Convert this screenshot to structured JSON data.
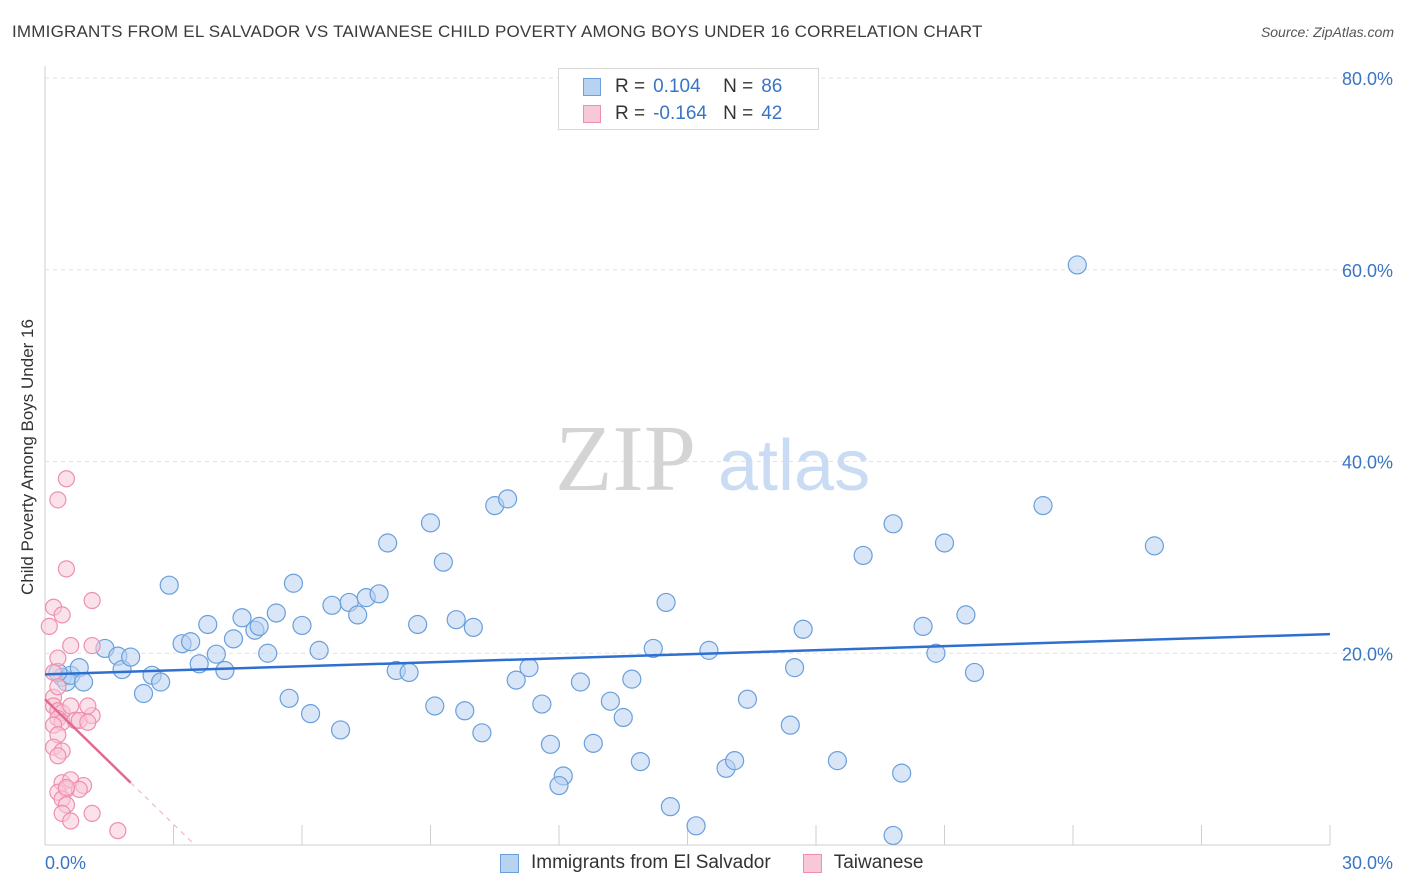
{
  "header": {
    "title": "IMMIGRANTS FROM EL SALVADOR VS TAIWANESE CHILD POVERTY AMONG BOYS UNDER 16 CORRELATION CHART",
    "source": "Source: ZipAtlas.com"
  },
  "watermark": {
    "zip": "ZIP",
    "atlas": "atlas"
  },
  "legend": {
    "series": [
      {
        "r_label": "R =",
        "r_value": "0.104",
        "n_label": "N =",
        "n_value": "86"
      },
      {
        "r_label": "R =",
        "r_value": "-0.164",
        "n_label": "N =",
        "n_value": "42"
      }
    ]
  },
  "chart_data": {
    "type": "scatter",
    "title": "IMMIGRANTS FROM EL SALVADOR VS TAIWANESE CHILD POVERTY AMONG BOYS UNDER 16 CORRELATION CHART",
    "xlabel": "",
    "ylabel": "Child Poverty Among Boys Under 16",
    "xlim": [
      0,
      30
    ],
    "ylim": [
      0,
      80
    ],
    "x_tick_labels": [
      "0.0%",
      "30.0%"
    ],
    "y_ticks": [
      20,
      40,
      60,
      80
    ],
    "y_tick_labels": [
      "20.0%",
      "40.0%",
      "60.0%",
      "80.0%"
    ],
    "grid": true,
    "legend_position": "top-center",
    "series": [
      {
        "name": "Immigrants from El Salvador",
        "color": "#8ab4e8",
        "edge_color": "#6a9fdc",
        "trend": {
          "x": [
            0.0,
            30.0
          ],
          "y": [
            17.8,
            22.0
          ],
          "color": "#2f6fd0"
        },
        "points": [
          [
            0.4,
            17.5
          ],
          [
            0.5,
            17.0
          ],
          [
            0.6,
            17.7
          ],
          [
            0.8,
            18.5
          ],
          [
            0.9,
            17.0
          ],
          [
            1.4,
            20.5
          ],
          [
            1.7,
            19.7
          ],
          [
            1.8,
            18.3
          ],
          [
            2.0,
            19.6
          ],
          [
            2.3,
            15.8
          ],
          [
            2.5,
            17.7
          ],
          [
            2.7,
            17.0
          ],
          [
            2.9,
            27.1
          ],
          [
            3.2,
            21.0
          ],
          [
            3.4,
            21.2
          ],
          [
            3.6,
            18.9
          ],
          [
            3.8,
            23.0
          ],
          [
            4.0,
            19.9
          ],
          [
            4.2,
            18.2
          ],
          [
            4.4,
            21.5
          ],
          [
            4.6,
            23.7
          ],
          [
            4.9,
            22.4
          ],
          [
            5.0,
            22.8
          ],
          [
            5.2,
            20.0
          ],
          [
            5.4,
            24.2
          ],
          [
            5.7,
            15.3
          ],
          [
            5.8,
            27.3
          ],
          [
            6.0,
            22.9
          ],
          [
            6.2,
            13.7
          ],
          [
            6.4,
            20.3
          ],
          [
            6.7,
            25.0
          ],
          [
            6.9,
            12.0
          ],
          [
            7.1,
            25.3
          ],
          [
            7.3,
            24.0
          ],
          [
            7.5,
            25.8
          ],
          [
            7.8,
            26.2
          ],
          [
            8.0,
            31.5
          ],
          [
            8.2,
            18.2
          ],
          [
            8.5,
            18.0
          ],
          [
            8.7,
            23.0
          ],
          [
            9.0,
            33.6
          ],
          [
            9.1,
            14.5
          ],
          [
            9.3,
            29.5
          ],
          [
            9.6,
            23.5
          ],
          [
            9.8,
            14.0
          ],
          [
            10.0,
            22.7
          ],
          [
            10.2,
            11.7
          ],
          [
            10.5,
            35.4
          ],
          [
            10.8,
            36.1
          ],
          [
            11.0,
            17.2
          ],
          [
            11.3,
            18.5
          ],
          [
            11.6,
            14.7
          ],
          [
            11.8,
            10.5
          ],
          [
            12.1,
            7.2
          ],
          [
            12.0,
            6.2
          ],
          [
            12.5,
            17.0
          ],
          [
            12.8,
            10.6
          ],
          [
            13.2,
            15.0
          ],
          [
            13.5,
            13.3
          ],
          [
            13.7,
            17.3
          ],
          [
            13.9,
            8.7
          ],
          [
            14.2,
            20.5
          ],
          [
            14.5,
            25.3
          ],
          [
            14.6,
            4.0
          ],
          [
            15.2,
            2.0
          ],
          [
            15.5,
            20.3
          ],
          [
            15.9,
            8.0
          ],
          [
            16.1,
            8.8
          ],
          [
            16.4,
            15.2
          ],
          [
            17.4,
            12.5
          ],
          [
            17.5,
            18.5
          ],
          [
            17.7,
            22.5
          ],
          [
            18.5,
            8.8
          ],
          [
            19.1,
            30.2
          ],
          [
            19.8,
            33.5
          ],
          [
            19.8,
            1.0
          ],
          [
            20.0,
            7.5
          ],
          [
            20.5,
            22.8
          ],
          [
            20.8,
            20.0
          ],
          [
            21.0,
            31.5
          ],
          [
            21.5,
            24.0
          ],
          [
            21.7,
            18.0
          ],
          [
            24.1,
            60.5
          ],
          [
            23.3,
            35.4
          ],
          [
            25.9,
            31.2
          ],
          [
            0.3,
            18.0
          ]
        ]
      },
      {
        "name": "Taiwanese",
        "color": "#f5b6c9",
        "edge_color": "#ef8fae",
        "trend": {
          "x": [
            0.0,
            2.0
          ],
          "y": [
            15.2,
            6.5
          ],
          "color": "#e06a92"
        },
        "trend_extension": {
          "x": [
            2.0,
            3.5
          ],
          "y": [
            6.5,
            0.0
          ]
        },
        "points": [
          [
            0.1,
            22.8
          ],
          [
            0.2,
            24.8
          ],
          [
            0.2,
            15.4
          ],
          [
            0.3,
            19.5
          ],
          [
            0.2,
            18.0
          ],
          [
            0.3,
            16.5
          ],
          [
            0.2,
            14.5
          ],
          [
            0.3,
            14.0
          ],
          [
            0.4,
            13.8
          ],
          [
            0.3,
            13.2
          ],
          [
            0.4,
            12.8
          ],
          [
            0.2,
            12.5
          ],
          [
            0.3,
            11.5
          ],
          [
            0.2,
            10.2
          ],
          [
            0.4,
            9.8
          ],
          [
            0.3,
            9.3
          ],
          [
            0.4,
            6.5
          ],
          [
            0.5,
            5.8
          ],
          [
            0.3,
            5.5
          ],
          [
            0.4,
            4.8
          ],
          [
            0.5,
            4.2
          ],
          [
            0.4,
            3.3
          ],
          [
            0.6,
            2.5
          ],
          [
            0.3,
            36.0
          ],
          [
            0.5,
            38.2
          ],
          [
            0.5,
            28.8
          ],
          [
            0.4,
            24.0
          ],
          [
            0.6,
            20.8
          ],
          [
            0.6,
            14.5
          ],
          [
            0.7,
            13.0
          ],
          [
            0.8,
            13.0
          ],
          [
            0.6,
            6.8
          ],
          [
            0.9,
            6.2
          ],
          [
            0.8,
            5.8
          ],
          [
            0.5,
            6.0
          ],
          [
            1.1,
            3.3
          ],
          [
            1.1,
            13.5
          ],
          [
            1.0,
            12.8
          ],
          [
            1.0,
            14.5
          ],
          [
            1.1,
            20.8
          ],
          [
            1.1,
            25.5
          ],
          [
            1.7,
            1.5
          ]
        ]
      }
    ]
  },
  "bottom_legend": {
    "items": [
      {
        "label": "Immigrants from El Salvador"
      },
      {
        "label": "Taiwanese"
      }
    ]
  },
  "colors": {
    "blue_fill": "#b8d2f1",
    "blue_edge": "#6a9fdc",
    "pink_fill": "#f8c8d7",
    "pink_edge": "#ef8fae",
    "axis_text": "#3a75c4",
    "grid": "#e2e2e2"
  }
}
